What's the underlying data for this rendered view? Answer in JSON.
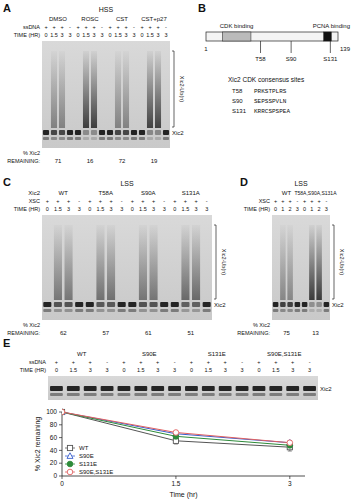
{
  "figure": {
    "A": {
      "label": "A",
      "extract": "HSS",
      "groups": [
        "DMSO",
        "ROSC",
        "CST",
        "CST+p27"
      ],
      "rows": [
        {
          "label": "ssDNA",
          "lanes": [
            "+",
            "+",
            "+",
            "-"
          ]
        },
        {
          "label": "TIME (HR)",
          "lanes": [
            "0",
            "1.5",
            "3",
            "3"
          ]
        }
      ],
      "band_label": "Xic2",
      "ub_label": "Xic2-Ub(n)",
      "percent_label": "% Xic2",
      "remaining_label": "REMAINING:",
      "remaining": [
        71,
        16,
        72,
        19
      ]
    },
    "B": {
      "label": "B",
      "start": 1,
      "end": 139,
      "regions": [
        {
          "name": "CDK binding",
          "start": 18,
          "end": 48
        },
        {
          "name": "PCNA binding",
          "start": 124,
          "end": 132
        }
      ],
      "sites": [
        {
          "label": "T58",
          "position": 58
        },
        {
          "label": "S90",
          "position": 90
        },
        {
          "label": "S131",
          "position": 131
        }
      ],
      "consensus_title": "Xic2 CDK consensus sites",
      "consensus": [
        {
          "site": "T58",
          "sequence": "PRKSTPLRS"
        },
        {
          "site": "S90",
          "sequence": "SEPSSPVLN"
        },
        {
          "site": "S131",
          "sequence": "KRRCSPSPEA"
        }
      ]
    },
    "C": {
      "label": "C",
      "extract": "LSS",
      "group_label": "Xic2",
      "groups": [
        "WT",
        "T58A",
        "S90A",
        "S131A"
      ],
      "rows": [
        {
          "label": "XSC",
          "lanes": [
            "+",
            "+",
            "+",
            "-"
          ]
        },
        {
          "label": "TIME (HR)",
          "lanes": [
            "0",
            "1.5",
            "3",
            "3"
          ]
        }
      ],
      "band_label": "Xic2",
      "ub_label": "Xic2-Ub(n)",
      "percent_label": "% Xic2",
      "remaining_label": "REMAINING:",
      "remaining": [
        62,
        57,
        61,
        51
      ]
    },
    "D": {
      "label": "D",
      "extract": "LSS",
      "groups": [
        "WT",
        "T58A,S90A,S131A"
      ],
      "rows": [
        {
          "label": "XSC",
          "lanes": [
            "+",
            "+",
            "+",
            "-"
          ]
        },
        {
          "label": "TIME (HR)",
          "lanes": [
            "0",
            "1",
            "2",
            "3"
          ]
        }
      ],
      "band_label": "Xic2",
      "ub_label": "Xic2-Ub(n)",
      "percent_label": "% Xic2",
      "remaining_label": "REMAINING:",
      "remaining": [
        75,
        13
      ]
    },
    "E": {
      "label": "E",
      "groups": [
        "WT",
        "S90E",
        "S131E",
        "S90E,S131E"
      ],
      "rows": [
        {
          "label": "ssDNA",
          "lanes": [
            "+",
            "+",
            "+",
            "-"
          ]
        },
        {
          "label": "TIME (HR)",
          "lanes": [
            "0",
            "1.5",
            "3",
            "3"
          ]
        }
      ],
      "band_label": "Xic2"
    }
  },
  "chart_data": {
    "type": "line",
    "x_label": "Time (hr)",
    "y_label": "% Xic2 remaining",
    "x": [
      0,
      1.5,
      3
    ],
    "xlim": [
      0,
      3.2
    ],
    "xticks": [
      0,
      1.5,
      3
    ],
    "ylim": [
      0,
      100
    ],
    "yticks": [
      0,
      20,
      40,
      60,
      80,
      100
    ],
    "grid": false,
    "legend": "lower left",
    "series": [
      {
        "name": "WT",
        "color": "#555555",
        "marker": "open-square",
        "values": [
          100,
          55,
          45
        ],
        "error": [
          0,
          5,
          6
        ]
      },
      {
        "name": "S90E",
        "color": "#3a5fcd",
        "marker": "open-triangle",
        "values": [
          100,
          66,
          52
        ],
        "error": [
          0,
          3,
          3
        ]
      },
      {
        "name": "S131E",
        "color": "#2e8b3a",
        "marker": "circle",
        "values": [
          100,
          62,
          48
        ],
        "error": [
          0,
          4,
          4
        ]
      },
      {
        "name": "S90E,S131E",
        "color": "#e06060",
        "marker": "open-circle",
        "values": [
          100,
          68,
          52
        ],
        "error": [
          0,
          3,
          3
        ]
      }
    ]
  }
}
